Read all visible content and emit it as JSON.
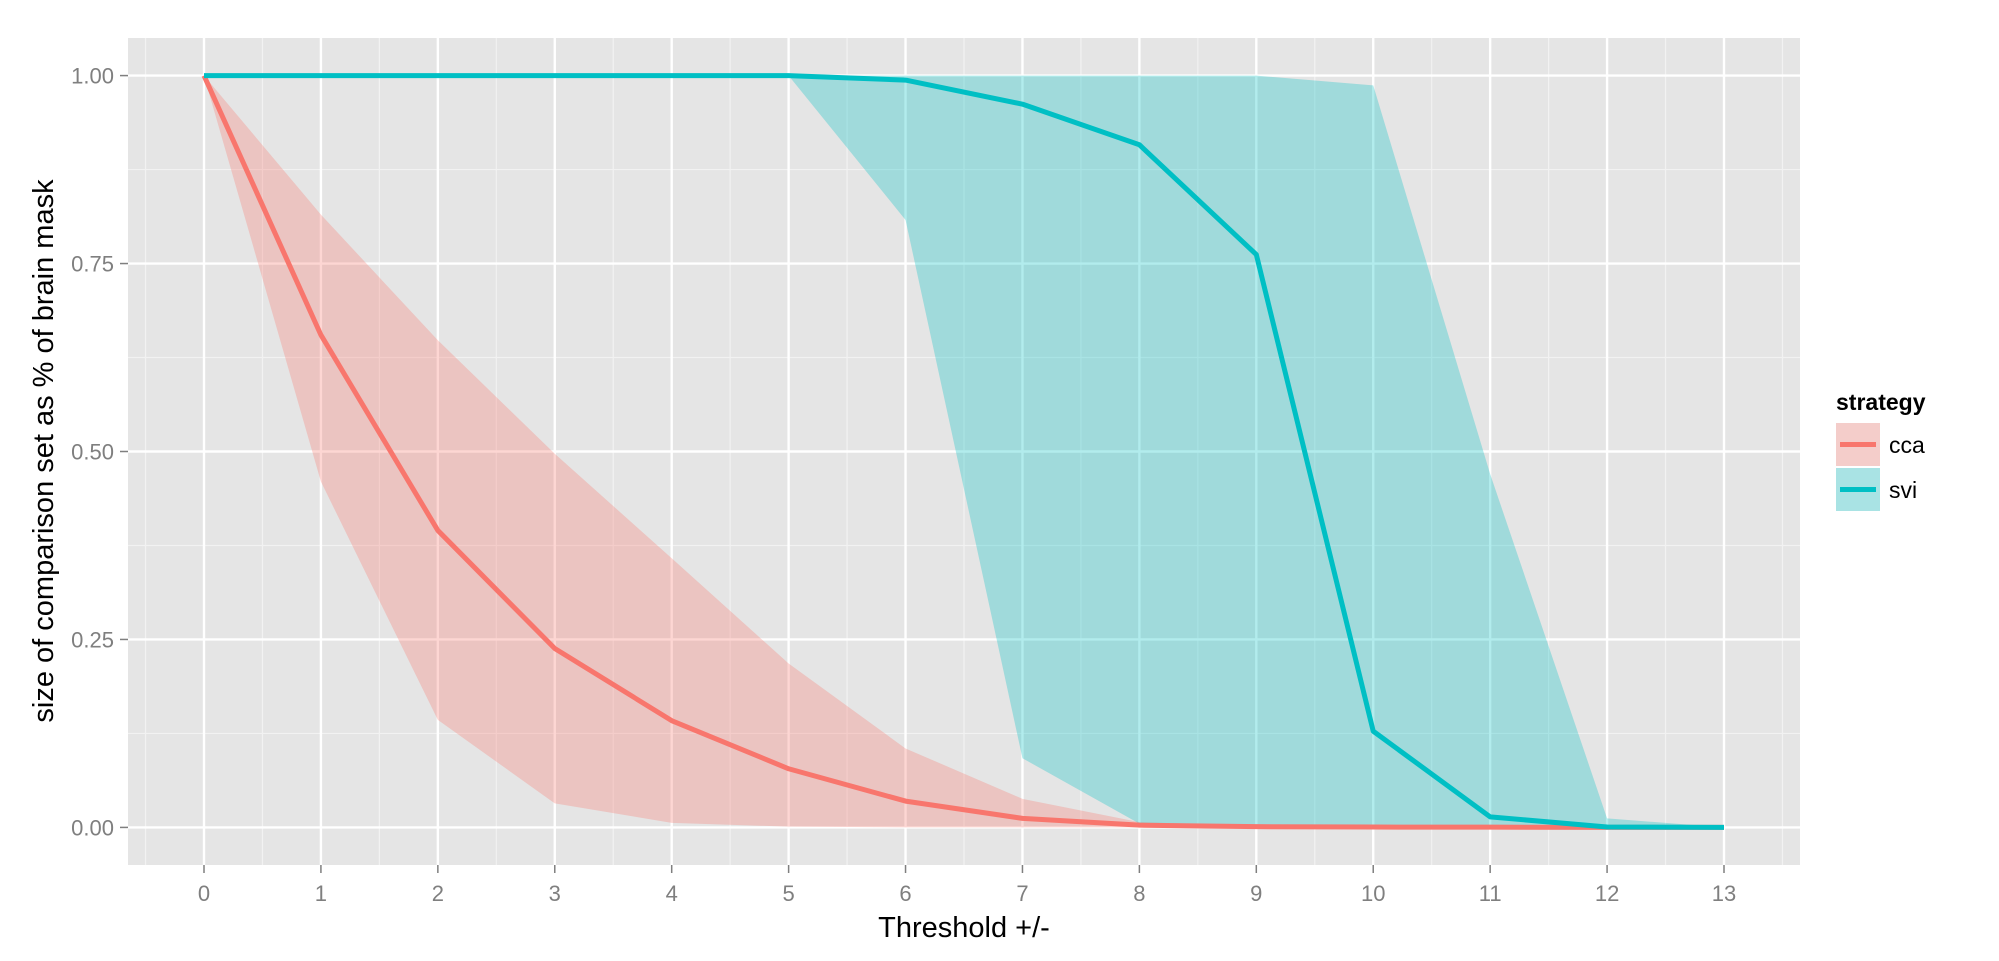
{
  "chart_data": {
    "type": "area",
    "xlabel": "Threshold +/-",
    "ylabel": "size of comparison set as % of brain mask",
    "x": [
      0,
      1,
      2,
      3,
      4,
      5,
      6,
      7,
      8,
      9,
      10,
      11,
      12,
      13
    ],
    "xlim": [
      -0.65,
      13.65
    ],
    "ylim": [
      -0.05,
      1.05
    ],
    "x_ticks": [
      "0",
      "1",
      "2",
      "3",
      "4",
      "5",
      "6",
      "7",
      "8",
      "9",
      "10",
      "11",
      "12",
      "13"
    ],
    "y_ticks": [
      {
        "value": 0.0,
        "label": "0.00"
      },
      {
        "value": 0.25,
        "label": "0.25"
      },
      {
        "value": 0.5,
        "label": "0.50"
      },
      {
        "value": 0.75,
        "label": "0.75"
      },
      {
        "value": 1.0,
        "label": "1.00"
      }
    ],
    "grid": true,
    "legend": {
      "title": "strategy",
      "position": "right"
    },
    "series": [
      {
        "name": "cca",
        "color": "#F8766D",
        "fill_color": "#F8766D",
        "values": [
          1.0,
          0.655,
          0.395,
          0.238,
          0.142,
          0.078,
          0.035,
          0.012,
          0.003,
          0.001,
          0.0005,
          0.0003,
          0.0,
          0.0
        ],
        "lower": [
          1.0,
          0.46,
          0.143,
          0.032,
          0.006,
          0.001,
          0.0,
          0.0,
          0.0,
          0.0,
          0.0,
          0.0,
          0.0,
          0.0
        ],
        "upper": [
          1.0,
          0.815,
          0.648,
          0.497,
          0.358,
          0.218,
          0.105,
          0.038,
          0.007,
          0.002,
          0.001,
          0.0005,
          0.0,
          0.0
        ]
      },
      {
        "name": "svi",
        "color": "#00BFC4",
        "fill_color": "#00BFC4",
        "values": [
          1.0,
          1.0,
          1.0,
          1.0,
          1.0,
          1.0,
          0.994,
          0.962,
          0.908,
          0.762,
          0.128,
          0.014,
          0.0005,
          0.0
        ],
        "lower": [
          1.0,
          1.0,
          1.0,
          1.0,
          1.0,
          1.0,
          0.808,
          0.092,
          0.005,
          0.0,
          0.0,
          0.0,
          0.0,
          0.0
        ],
        "upper": [
          1.0,
          1.0,
          1.0,
          1.0,
          1.0,
          1.0,
          1.0,
          1.0,
          1.0,
          1.0,
          0.987,
          0.47,
          0.012,
          0.0
        ]
      }
    ]
  },
  "colors": {
    "panel_background": "#E5E5E5",
    "grid_major": "#FFFFFF",
    "grid_minor": "#F2F2F2",
    "tick_text": "#7F7F7F"
  }
}
